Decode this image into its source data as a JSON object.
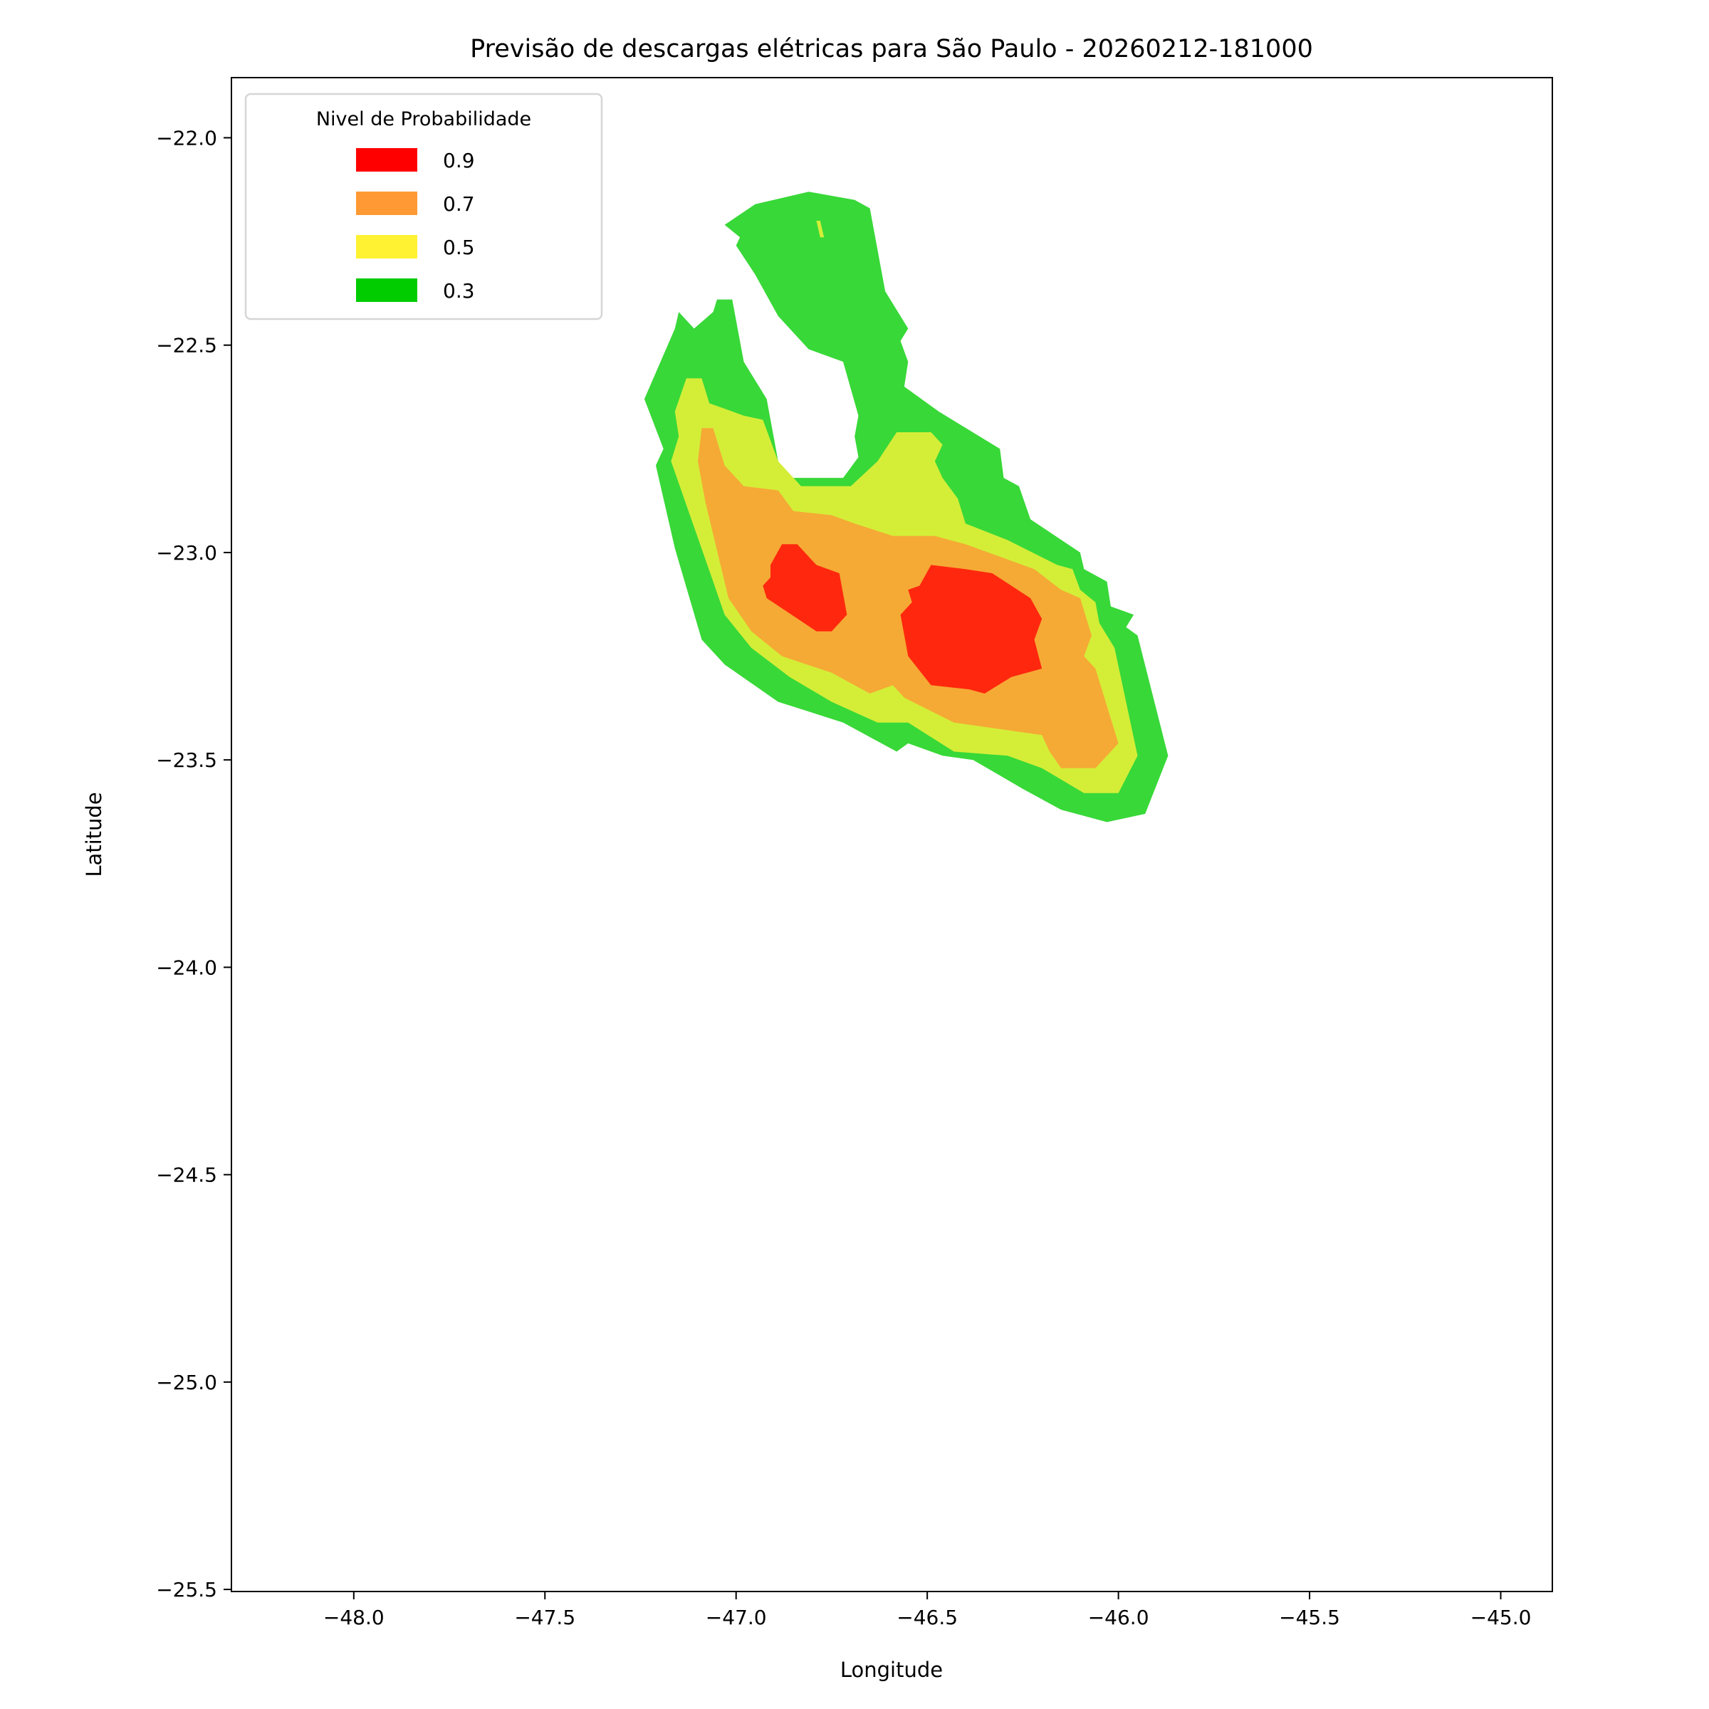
{
  "chart_data": {
    "type": "contour",
    "title": "Previsão de descargas elétricas para São Paulo - 20260212-181000",
    "xlabel": "Longitude",
    "ylabel": "Latitude",
    "xlim": [
      -48.32,
      -44.865
    ],
    "ylim": [
      -25.505,
      -21.855
    ],
    "grid": false,
    "xticks": [
      -48.0,
      -47.5,
      -47.0,
      -46.5,
      -46.0,
      -45.5,
      -45.0
    ],
    "xtick_labels": [
      "−48.0",
      "−47.5",
      "−47.0",
      "−46.5",
      "−46.0",
      "−45.5",
      "−45.0"
    ],
    "yticks": [
      -22.0,
      -22.5,
      -23.0,
      -23.5,
      -24.0,
      -24.5,
      -25.0,
      -25.5
    ],
    "ytick_labels": [
      "−22.0",
      "−22.5",
      "−23.0",
      "−23.5",
      "−24.0",
      "−24.5",
      "−25.0",
      "−25.5"
    ],
    "legend": {
      "title": "Nivel de Probabilidade",
      "placement": "upper-left",
      "entries": [
        {
          "label": "0.9",
          "color": "#ff0000"
        },
        {
          "label": "0.7",
          "color": "#ff9933"
        },
        {
          "label": "0.5",
          "color": "#fff233"
        },
        {
          "label": "0.3",
          "color": "#00cc00"
        }
      ]
    },
    "levels": [
      {
        "level": 0.3,
        "fill": "#38d838",
        "polygons": [
          [
            [
              -47.03,
              -22.21
            ],
            [
              -46.95,
              -22.16
            ],
            [
              -46.81,
              -22.13
            ],
            [
              -46.69,
              -22.15
            ],
            [
              -46.65,
              -22.17
            ],
            [
              -46.61,
              -22.37
            ],
            [
              -46.55,
              -22.46
            ],
            [
              -46.57,
              -22.49
            ],
            [
              -46.55,
              -22.54
            ],
            [
              -46.56,
              -22.6
            ],
            [
              -46.47,
              -22.66
            ],
            [
              -46.31,
              -22.75
            ],
            [
              -46.3,
              -22.82
            ],
            [
              -46.26,
              -22.84
            ],
            [
              -46.23,
              -22.92
            ],
            [
              -46.1,
              -23.0
            ],
            [
              -46.09,
              -23.04
            ],
            [
              -46.03,
              -23.07
            ],
            [
              -46.02,
              -23.13
            ],
            [
              -45.96,
              -23.15
            ],
            [
              -45.98,
              -23.18
            ],
            [
              -45.95,
              -23.2
            ],
            [
              -45.87,
              -23.49
            ],
            [
              -45.93,
              -23.63
            ],
            [
              -46.03,
              -23.65
            ],
            [
              -46.15,
              -23.62
            ],
            [
              -46.25,
              -23.57
            ],
            [
              -46.38,
              -23.5
            ],
            [
              -46.46,
              -23.49
            ],
            [
              -46.55,
              -23.46
            ],
            [
              -46.58,
              -23.48
            ],
            [
              -46.72,
              -23.41
            ],
            [
              -46.89,
              -23.36
            ],
            [
              -47.03,
              -23.27
            ],
            [
              -47.09,
              -23.21
            ],
            [
              -47.16,
              -22.99
            ],
            [
              -47.21,
              -22.79
            ],
            [
              -47.19,
              -22.75
            ],
            [
              -47.24,
              -22.63
            ],
            [
              -47.16,
              -22.46
            ],
            [
              -47.15,
              -22.42
            ],
            [
              -47.11,
              -22.46
            ],
            [
              -47.06,
              -22.42
            ],
            [
              -47.05,
              -22.39
            ],
            [
              -47.01,
              -22.39
            ],
            [
              -46.98,
              -22.54
            ],
            [
              -46.92,
              -22.63
            ],
            [
              -46.89,
              -22.78
            ],
            [
              -46.86,
              -22.82
            ],
            [
              -46.72,
              -22.82
            ],
            [
              -46.68,
              -22.77
            ],
            [
              -46.69,
              -22.72
            ],
            [
              -46.68,
              -22.67
            ],
            [
              -46.72,
              -22.54
            ],
            [
              -46.81,
              -22.51
            ],
            [
              -46.89,
              -22.43
            ],
            [
              -46.95,
              -22.33
            ],
            [
              -47.0,
              -22.26
            ],
            [
              -46.99,
              -22.24
            ]
          ]
        ]
      },
      {
        "level": 0.5,
        "fill": "#d4ee38",
        "polygons": [
          [
            [
              -47.13,
              -22.58
            ],
            [
              -47.09,
              -22.58
            ],
            [
              -47.07,
              -22.64
            ],
            [
              -46.98,
              -22.67
            ],
            [
              -46.93,
              -22.68
            ],
            [
              -46.89,
              -22.78
            ],
            [
              -46.83,
              -22.84
            ],
            [
              -46.7,
              -22.84
            ],
            [
              -46.63,
              -22.78
            ],
            [
              -46.58,
              -22.71
            ],
            [
              -46.49,
              -22.71
            ],
            [
              -46.46,
              -22.74
            ],
            [
              -46.48,
              -22.78
            ],
            [
              -46.46,
              -22.82
            ],
            [
              -46.42,
              -22.87
            ],
            [
              -46.4,
              -22.93
            ],
            [
              -46.29,
              -22.97
            ],
            [
              -46.16,
              -23.03
            ],
            [
              -46.12,
              -23.04
            ],
            [
              -46.1,
              -23.09
            ],
            [
              -46.06,
              -23.12
            ],
            [
              -46.05,
              -23.17
            ],
            [
              -46.01,
              -23.23
            ],
            [
              -45.95,
              -23.49
            ],
            [
              -46.0,
              -23.58
            ],
            [
              -46.09,
              -23.58
            ],
            [
              -46.2,
              -23.52
            ],
            [
              -46.29,
              -23.49
            ],
            [
              -46.43,
              -23.48
            ],
            [
              -46.55,
              -23.41
            ],
            [
              -46.63,
              -23.41
            ],
            [
              -46.75,
              -23.36
            ],
            [
              -46.86,
              -23.3
            ],
            [
              -46.96,
              -23.23
            ],
            [
              -47.03,
              -23.15
            ],
            [
              -47.06,
              -23.07
            ],
            [
              -47.17,
              -22.78
            ],
            [
              -47.15,
              -22.72
            ],
            [
              -47.16,
              -22.66
            ]
          ],
          [
            [
              -46.79,
              -22.2
            ],
            [
              -46.78,
              -22.2
            ],
            [
              -46.77,
              -22.24
            ],
            [
              -46.78,
              -22.24
            ]
          ]
        ]
      },
      {
        "level": 0.7,
        "fill": "#f5aa35",
        "polygons": [
          [
            [
              -47.09,
              -22.7
            ],
            [
              -47.06,
              -22.7
            ],
            [
              -47.03,
              -22.79
            ],
            [
              -46.98,
              -22.84
            ],
            [
              -46.89,
              -22.85
            ],
            [
              -46.85,
              -22.9
            ],
            [
              -46.75,
              -22.91
            ],
            [
              -46.69,
              -22.93
            ],
            [
              -46.59,
              -22.96
            ],
            [
              -46.48,
              -22.96
            ],
            [
              -46.4,
              -22.98
            ],
            [
              -46.22,
              -23.04
            ],
            [
              -46.15,
              -23.09
            ],
            [
              -46.1,
              -23.11
            ],
            [
              -46.07,
              -23.2
            ],
            [
              -46.09,
              -23.25
            ],
            [
              -46.06,
              -23.28
            ],
            [
              -46.0,
              -23.46
            ],
            [
              -46.06,
              -23.52
            ],
            [
              -46.15,
              -23.52
            ],
            [
              -46.18,
              -23.48
            ],
            [
              -46.2,
              -23.44
            ],
            [
              -46.43,
              -23.41
            ],
            [
              -46.56,
              -23.35
            ],
            [
              -46.59,
              -23.32
            ],
            [
              -46.65,
              -23.34
            ],
            [
              -46.75,
              -23.29
            ],
            [
              -46.88,
              -23.25
            ],
            [
              -46.96,
              -23.19
            ],
            [
              -47.02,
              -23.11
            ],
            [
              -47.08,
              -22.88
            ],
            [
              -47.1,
              -22.78
            ]
          ]
        ]
      },
      {
        "level": 0.9,
        "fill": "#ff280e",
        "polygons": [
          [
            [
              -46.88,
              -22.98
            ],
            [
              -46.84,
              -22.98
            ],
            [
              -46.79,
              -23.03
            ],
            [
              -46.73,
              -23.05
            ],
            [
              -46.71,
              -23.15
            ],
            [
              -46.75,
              -23.19
            ],
            [
              -46.79,
              -23.19
            ],
            [
              -46.92,
              -23.11
            ],
            [
              -46.93,
              -23.08
            ],
            [
              -46.91,
              -23.06
            ],
            [
              -46.91,
              -23.03
            ]
          ],
          [
            [
              -46.49,
              -23.03
            ],
            [
              -46.4,
              -23.04
            ],
            [
              -46.33,
              -23.05
            ],
            [
              -46.23,
              -23.11
            ],
            [
              -46.2,
              -23.16
            ],
            [
              -46.22,
              -23.21
            ],
            [
              -46.2,
              -23.28
            ],
            [
              -46.28,
              -23.3
            ],
            [
              -46.35,
              -23.34
            ],
            [
              -46.39,
              -23.33
            ],
            [
              -46.49,
              -23.32
            ],
            [
              -46.55,
              -23.25
            ],
            [
              -46.57,
              -23.15
            ],
            [
              -46.54,
              -23.12
            ],
            [
              -46.55,
              -23.09
            ],
            [
              -46.52,
              -23.08
            ]
          ]
        ]
      }
    ]
  }
}
